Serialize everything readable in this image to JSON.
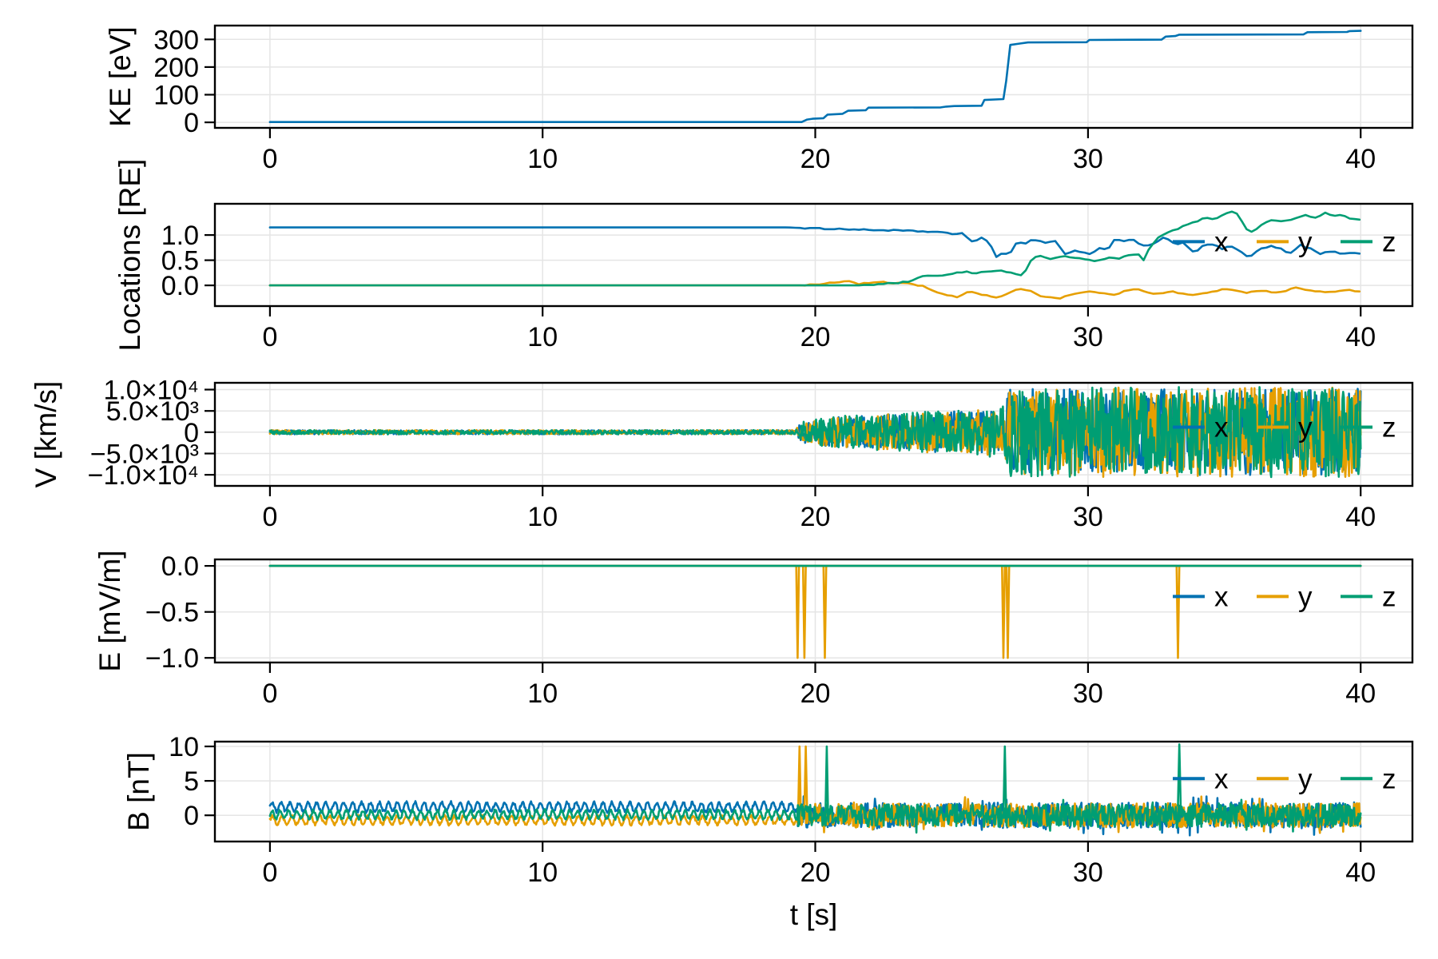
{
  "figure": {
    "xlabel": "t [s]",
    "background": "#ffffff",
    "grid_color": "#e5e5e5",
    "axis_color": "#000000",
    "x_tick_values": [
      0,
      10,
      20,
      30,
      40
    ],
    "x_tick_labels": [
      "0",
      "10",
      "20",
      "30",
      "40"
    ],
    "x_range": [
      -2.02,
      41.9
    ],
    "colors": {
      "x": "#0072B2",
      "y": "#E69F00",
      "z": "#009E73"
    },
    "legend_labels": [
      "x",
      "y",
      "z"
    ]
  },
  "chart_data": [
    {
      "id": "kinetic-energy",
      "type": "line",
      "ylabel": "KE [eV]",
      "ytick_values": [
        0,
        100,
        200,
        300
      ],
      "ytick_labels": [
        "0",
        "100",
        "200",
        "300"
      ],
      "ylim": [
        -20,
        350
      ],
      "legend": false,
      "series": [
        {
          "name": "KE",
          "color_key": "x",
          "keypoints": [
            [
              0,
              1
            ],
            [
              19.5,
              1
            ],
            [
              19.7,
              10
            ],
            [
              19.9,
              13
            ],
            [
              20.3,
              15
            ],
            [
              20.45,
              28
            ],
            [
              21.0,
              31
            ],
            [
              21.2,
              42
            ],
            [
              21.85,
              44
            ],
            [
              21.95,
              53
            ],
            [
              24.6,
              54
            ],
            [
              24.8,
              57
            ],
            [
              25.1,
              59
            ],
            [
              26.1,
              60
            ],
            [
              26.2,
              81
            ],
            [
              26.9,
              84
            ],
            [
              27.0,
              150
            ],
            [
              27.15,
              280
            ],
            [
              27.5,
              285
            ],
            [
              27.8,
              289
            ],
            [
              29.95,
              290
            ],
            [
              30.05,
              298
            ],
            [
              32.7,
              299
            ],
            [
              32.85,
              310
            ],
            [
              33.2,
              312
            ],
            [
              33.35,
              317
            ],
            [
              37.9,
              318
            ],
            [
              38.05,
              326
            ],
            [
              39.5,
              327
            ],
            [
              39.6,
              330
            ],
            [
              40,
              331
            ]
          ]
        }
      ]
    },
    {
      "id": "locations",
      "type": "line",
      "ylabel": "Locations [RE]",
      "ytick_values": [
        0.0,
        0.5,
        1.0
      ],
      "ytick_labels": [
        "0.0",
        "0.5",
        "1.0"
      ],
      "ylim": [
        -0.41,
        1.62
      ],
      "legend": true,
      "series": [
        {
          "name": "x",
          "color_key": "x",
          "jitter": 0.012,
          "jitter_start": 19.5,
          "keypoints": [
            [
              0,
              1.15
            ],
            [
              19,
              1.15
            ],
            [
              20,
              1.13
            ],
            [
              21,
              1.12
            ],
            [
              22,
              1.1
            ],
            [
              23,
              1.09
            ],
            [
              24,
              1.07
            ],
            [
              24.5,
              1.06
            ],
            [
              25,
              1.02
            ],
            [
              25.4,
              1.04
            ],
            [
              25.8,
              0.84
            ],
            [
              26.1,
              0.95
            ],
            [
              26.4,
              0.85
            ],
            [
              26.65,
              0.55
            ],
            [
              26.9,
              0.65
            ],
            [
              27.1,
              0.58
            ],
            [
              27.4,
              0.88
            ],
            [
              27.7,
              0.83
            ],
            [
              28.0,
              0.92
            ],
            [
              28.4,
              0.85
            ],
            [
              28.8,
              0.88
            ],
            [
              29.2,
              0.6
            ],
            [
              29.5,
              0.7
            ],
            [
              29.8,
              0.65
            ],
            [
              30.1,
              0.62
            ],
            [
              30.4,
              0.75
            ],
            [
              30.7,
              0.7
            ],
            [
              31.0,
              0.92
            ],
            [
              31.3,
              0.87
            ],
            [
              31.6,
              0.92
            ],
            [
              32.0,
              0.78
            ],
            [
              32.4,
              0.82
            ],
            [
              32.8,
              0.95
            ],
            [
              33.2,
              0.82
            ],
            [
              33.5,
              0.85
            ],
            [
              33.9,
              0.65
            ],
            [
              34.2,
              0.78
            ],
            [
              34.6,
              0.82
            ],
            [
              34.9,
              0.72
            ],
            [
              35.2,
              0.8
            ],
            [
              35.5,
              0.7
            ],
            [
              35.9,
              0.55
            ],
            [
              36.3,
              0.72
            ],
            [
              36.7,
              0.78
            ],
            [
              37.1,
              0.72
            ],
            [
              37.4,
              0.62
            ],
            [
              37.8,
              0.8
            ],
            [
              38.2,
              0.72
            ],
            [
              38.5,
              0.62
            ],
            [
              38.9,
              0.68
            ],
            [
              39.3,
              0.63
            ],
            [
              39.7,
              0.66
            ],
            [
              40,
              0.62
            ]
          ]
        },
        {
          "name": "y",
          "color_key": "y",
          "jitter": 0.012,
          "jitter_start": 19.5,
          "keypoints": [
            [
              0,
              0
            ],
            [
              19.5,
              0
            ],
            [
              20.2,
              0.03
            ],
            [
              20.8,
              0.06
            ],
            [
              21.2,
              0.09
            ],
            [
              21.6,
              0.03
            ],
            [
              22.0,
              0.05
            ],
            [
              22.4,
              0.07
            ],
            [
              22.8,
              0.04
            ],
            [
              23.2,
              0.06
            ],
            [
              23.6,
              0.02
            ],
            [
              24.0,
              -0.02
            ],
            [
              24.4,
              -0.12
            ],
            [
              24.8,
              -0.2
            ],
            [
              25.2,
              -0.23
            ],
            [
              25.6,
              -0.12
            ],
            [
              25.9,
              -0.15
            ],
            [
              26.3,
              -0.2
            ],
            [
              26.7,
              -0.24
            ],
            [
              27.0,
              -0.18
            ],
            [
              27.3,
              -0.1
            ],
            [
              27.6,
              -0.06
            ],
            [
              27.9,
              -0.12
            ],
            [
              28.2,
              -0.2
            ],
            [
              28.6,
              -0.23
            ],
            [
              29.0,
              -0.25
            ],
            [
              29.4,
              -0.18
            ],
            [
              29.8,
              -0.14
            ],
            [
              30.2,
              -0.12
            ],
            [
              30.6,
              -0.16
            ],
            [
              31.0,
              -0.2
            ],
            [
              31.4,
              -0.1
            ],
            [
              31.8,
              -0.06
            ],
            [
              32.2,
              -0.14
            ],
            [
              32.6,
              -0.17
            ],
            [
              33.0,
              -0.12
            ],
            [
              33.4,
              -0.15
            ],
            [
              33.8,
              -0.2
            ],
            [
              34.2,
              -0.16
            ],
            [
              34.6,
              -0.12
            ],
            [
              35.0,
              -0.07
            ],
            [
              35.4,
              -0.11
            ],
            [
              35.8,
              -0.14
            ],
            [
              36.2,
              -0.1
            ],
            [
              36.6,
              -0.12
            ],
            [
              37.0,
              -0.14
            ],
            [
              37.4,
              -0.08
            ],
            [
              37.7,
              -0.04
            ],
            [
              38.0,
              -0.08
            ],
            [
              38.4,
              -0.12
            ],
            [
              38.8,
              -0.14
            ],
            [
              39.2,
              -0.11
            ],
            [
              39.6,
              -0.1
            ],
            [
              40,
              -0.12
            ]
          ]
        },
        {
          "name": "z",
          "color_key": "z",
          "jitter": 0.012,
          "jitter_start": 21.5,
          "keypoints": [
            [
              0,
              0
            ],
            [
              21.5,
              0
            ],
            [
              22.3,
              0.02
            ],
            [
              23.0,
              0.05
            ],
            [
              23.5,
              0.08
            ],
            [
              23.9,
              0.17
            ],
            [
              24.3,
              0.2
            ],
            [
              24.7,
              0.19
            ],
            [
              25.1,
              0.24
            ],
            [
              25.5,
              0.27
            ],
            [
              25.9,
              0.24
            ],
            [
              26.3,
              0.28
            ],
            [
              26.7,
              0.3
            ],
            [
              27.1,
              0.26
            ],
            [
              27.4,
              0.22
            ],
            [
              27.65,
              0.2
            ],
            [
              27.8,
              0.42
            ],
            [
              28.0,
              0.55
            ],
            [
              28.3,
              0.58
            ],
            [
              28.7,
              0.52
            ],
            [
              29.1,
              0.58
            ],
            [
              29.5,
              0.55
            ],
            [
              29.9,
              0.52
            ],
            [
              30.3,
              0.48
            ],
            [
              30.7,
              0.55
            ],
            [
              31.1,
              0.53
            ],
            [
              31.5,
              0.6
            ],
            [
              31.85,
              0.62
            ],
            [
              32.0,
              0.45
            ],
            [
              32.2,
              0.7
            ],
            [
              32.5,
              0.92
            ],
            [
              32.8,
              1.02
            ],
            [
              33.1,
              1.08
            ],
            [
              33.5,
              1.18
            ],
            [
              33.9,
              1.25
            ],
            [
              34.3,
              1.35
            ],
            [
              34.6,
              1.3
            ],
            [
              34.9,
              1.38
            ],
            [
              35.2,
              1.48
            ],
            [
              35.5,
              1.42
            ],
            [
              35.9,
              1.04
            ],
            [
              36.2,
              1.12
            ],
            [
              36.5,
              1.25
            ],
            [
              36.8,
              1.3
            ],
            [
              37.2,
              1.28
            ],
            [
              37.6,
              1.33
            ],
            [
              38.0,
              1.4
            ],
            [
              38.3,
              1.33
            ],
            [
              38.7,
              1.44
            ],
            [
              39.0,
              1.36
            ],
            [
              39.3,
              1.42
            ],
            [
              39.6,
              1.33
            ],
            [
              40,
              1.3
            ]
          ]
        }
      ]
    },
    {
      "id": "velocity",
      "type": "line",
      "ylabel": "V [km/s]",
      "ytick_values": [
        10000,
        5000,
        0,
        -5000,
        -10000
      ],
      "ytick_labels": [
        "1.0×10⁴",
        "5.0×10³",
        "0",
        "−5.0×10³",
        "−1.0×10⁴"
      ],
      "ylim": [
        -12600,
        11600
      ],
      "legend": true,
      "envelope": [
        [
          0,
          500
        ],
        [
          19.25,
          500
        ],
        [
          19.5,
          2500
        ],
        [
          20,
          3000
        ],
        [
          21,
          3900
        ],
        [
          22.5,
          4300
        ],
        [
          24,
          4800
        ],
        [
          25.5,
          5200
        ],
        [
          26.5,
          5800
        ],
        [
          26.95,
          6100
        ],
        [
          27.1,
          10600
        ],
        [
          40,
          10600
        ]
      ],
      "series": [
        {
          "name": "x",
          "color_key": "x",
          "mode": "noise",
          "scale": 0.96
        },
        {
          "name": "y",
          "color_key": "y",
          "mode": "noise",
          "scale": 0.99
        },
        {
          "name": "z",
          "color_key": "z",
          "mode": "noise",
          "scale": 1.0
        }
      ]
    },
    {
      "id": "electric-field",
      "type": "line",
      "ylabel": "E [mV/m]",
      "ytick_values": [
        0.0,
        -0.5,
        -1.0
      ],
      "ytick_labels": [
        "0.0",
        "−0.5",
        "−1.0"
      ],
      "ylim": [
        -1.05,
        0.07
      ],
      "legend": true,
      "series": [
        {
          "name": "x",
          "color_key": "x",
          "keypoints": [
            [
              0,
              0
            ],
            [
              40,
              0
            ]
          ]
        },
        {
          "name": "y",
          "color_key": "y",
          "keypoints": [
            [
              0,
              0
            ],
            [
              40,
              0
            ]
          ],
          "spikes": [
            {
              "t": 19.35,
              "v": -1
            },
            {
              "t": 19.6,
              "v": -1
            },
            {
              "t": 20.35,
              "v": -1
            },
            {
              "t": 26.9,
              "v": -1
            },
            {
              "t": 27.06,
              "v": -1
            },
            {
              "t": 33.3,
              "v": -1
            }
          ]
        },
        {
          "name": "z",
          "color_key": "z",
          "keypoints": [
            [
              0,
              0
            ],
            [
              40,
              0
            ]
          ]
        }
      ]
    },
    {
      "id": "magnetic-field",
      "type": "line",
      "ylabel": "B [nT]",
      "ytick_values": [
        0,
        5,
        10
      ],
      "ytick_labels": [
        "0",
        "5",
        "10"
      ],
      "ylim": [
        -3.8,
        10.7
      ],
      "legend": true,
      "series": [
        {
          "name": "x",
          "color_key": "x",
          "mode": "noise",
          "quiet": {
            "until": 19.35,
            "center": 1.2,
            "amp": 0.65,
            "freq": 3.05
          },
          "envelope": [
            [
              19.35,
              1.8
            ],
            [
              40,
              1.9
            ]
          ]
        },
        {
          "name": "y",
          "color_key": "y",
          "mode": "noise",
          "quiet": {
            "until": 19.35,
            "center": -0.7,
            "amp": 0.6,
            "freq": 2.85
          },
          "envelope": [
            [
              19.35,
              1.7
            ],
            [
              40,
              1.8
            ]
          ],
          "spikes": [
            {
              "t": 19.42,
              "v": 10
            },
            {
              "t": 19.65,
              "v": 10
            }
          ]
        },
        {
          "name": "z",
          "color_key": "z",
          "mode": "noise",
          "quiet": {
            "until": 19.35,
            "center": 0.1,
            "amp": 0.6,
            "freq": 3.3
          },
          "envelope": [
            [
              19.35,
              1.6
            ],
            [
              40,
              1.7
            ]
          ],
          "spikes": [
            {
              "t": 20.42,
              "v": 10
            },
            {
              "t": 26.95,
              "v": 10
            },
            {
              "t": 33.35,
              "v": 10.3
            }
          ]
        }
      ]
    }
  ]
}
